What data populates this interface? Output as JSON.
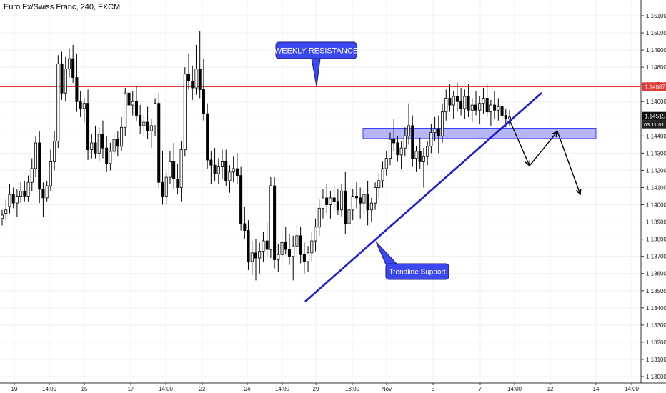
{
  "chart_title": "Euro Fx/Swiss Franc, 240, FXCM",
  "price_badge": "1.14515",
  "countdown_badge": "03:11:01",
  "chart_data": {
    "type": "candlestick",
    "title": "Euro Fx/Swiss Franc, 240, FXCM",
    "ylim": [
      1.1295,
      1.1515
    ],
    "y_ticks": [
      "1.15100",
      "1.15000",
      "1.14900",
      "1.14800",
      "1.14700",
      "1.14600",
      "1.14500",
      "1.14400",
      "1.14300",
      "1.14200",
      "1.14100",
      "1.14000",
      "1.13900",
      "1.13800",
      "1.13700",
      "1.13600",
      "1.13500",
      "1.13400",
      "1.13300",
      "1.13200",
      "1.13100",
      "1.13000"
    ],
    "x_ticks": [
      "10",
      "14:00",
      "15",
      "17",
      "14:00",
      "22",
      "24",
      "14:00",
      "29",
      "13:00",
      "Nov",
      "5",
      "7",
      "14:00",
      "12",
      "14",
      "14:00"
    ],
    "last_price": 1.14515,
    "countdown": "03:11:01",
    "resistance": {
      "value": 1.14687,
      "label": "1.14687",
      "color": "#e53935"
    },
    "zone": {
      "low": 1.14385,
      "high": 1.14445,
      "fill": "#9c9ff5",
      "stroke": "#3d3dff"
    },
    "trendline_color": "#1c1cd6",
    "annotation_color": "#3b48f0",
    "annotations": [
      {
        "text": "WEEKLY RESISTANCE"
      },
      {
        "text": "Trendline Support"
      }
    ],
    "candles": [
      [
        1.1392,
        1.1397,
        1.1388,
        1.1394
      ],
      [
        1.1395,
        1.1403,
        1.1391,
        1.1397
      ],
      [
        1.1399,
        1.1412,
        1.1395,
        1.1406
      ],
      [
        1.1406,
        1.141,
        1.1398,
        1.1401
      ],
      [
        1.1401,
        1.1409,
        1.1393,
        1.1405
      ],
      [
        1.1405,
        1.1413,
        1.1401,
        1.1408
      ],
      [
        1.1408,
        1.1414,
        1.1402,
        1.1405
      ],
      [
        1.1405,
        1.1417,
        1.1402,
        1.1413
      ],
      [
        1.1413,
        1.1427,
        1.1408,
        1.1421
      ],
      [
        1.1421,
        1.144,
        1.1416,
        1.1436
      ],
      [
        1.1436,
        1.1443,
        1.1401,
        1.1409
      ],
      [
        1.1409,
        1.1413,
        1.1393,
        1.1404
      ],
      [
        1.1404,
        1.1414,
        1.1402,
        1.1411
      ],
      [
        1.1411,
        1.1432,
        1.1408,
        1.1425
      ],
      [
        1.1425,
        1.1443,
        1.142,
        1.1437
      ],
      [
        1.1437,
        1.1487,
        1.1433,
        1.1482
      ],
      [
        1.1482,
        1.1489,
        1.1461,
        1.1465
      ],
      [
        1.1465,
        1.1486,
        1.146,
        1.1479
      ],
      [
        1.1479,
        1.1491,
        1.1474,
        1.1485
      ],
      [
        1.1485,
        1.1493,
        1.1471,
        1.1474
      ],
      [
        1.1474,
        1.1488,
        1.1454,
        1.146
      ],
      [
        1.146,
        1.1466,
        1.1451,
        1.1456
      ],
      [
        1.1456,
        1.1462,
        1.1448,
        1.1459
      ],
      [
        1.1459,
        1.1467,
        1.1426,
        1.1432
      ],
      [
        1.1432,
        1.1441,
        1.1427,
        1.1436
      ],
      [
        1.1436,
        1.1446,
        1.1427,
        1.143
      ],
      [
        1.143,
        1.1445,
        1.1425,
        1.1441
      ],
      [
        1.1441,
        1.1449,
        1.1427,
        1.1433
      ],
      [
        1.1433,
        1.144,
        1.1419,
        1.1424
      ],
      [
        1.1424,
        1.1436,
        1.142,
        1.1431
      ],
      [
        1.1431,
        1.1442,
        1.1429,
        1.1438
      ],
      [
        1.1438,
        1.1443,
        1.1428,
        1.1434
      ],
      [
        1.1434,
        1.1451,
        1.1431,
        1.1445
      ],
      [
        1.1445,
        1.1468,
        1.144,
        1.1465
      ],
      [
        1.1465,
        1.147,
        1.1453,
        1.1458
      ],
      [
        1.1458,
        1.1466,
        1.1452,
        1.146
      ],
      [
        1.146,
        1.1469,
        1.1449,
        1.1452
      ],
      [
        1.1452,
        1.1458,
        1.1441,
        1.1446
      ],
      [
        1.1446,
        1.1453,
        1.144,
        1.1448
      ],
      [
        1.1448,
        1.1457,
        1.1438,
        1.1443
      ],
      [
        1.1443,
        1.145,
        1.1433,
        1.1446
      ],
      [
        1.1446,
        1.1462,
        1.144,
        1.1459
      ],
      [
        1.1459,
        1.1465,
        1.141,
        1.1413
      ],
      [
        1.1413,
        1.1431,
        1.14,
        1.1405
      ],
      [
        1.1405,
        1.1419,
        1.14,
        1.1416
      ],
      [
        1.1416,
        1.1431,
        1.1412,
        1.1425
      ],
      [
        1.1425,
        1.1436,
        1.1409,
        1.1415
      ],
      [
        1.1415,
        1.1424,
        1.1406,
        1.141
      ],
      [
        1.141,
        1.1437,
        1.1402,
        1.1432
      ],
      [
        1.1432,
        1.148,
        1.1428,
        1.1476
      ],
      [
        1.1476,
        1.1488,
        1.1467,
        1.1472
      ],
      [
        1.1472,
        1.1481,
        1.1461,
        1.1468
      ],
      [
        1.1468,
        1.1493,
        1.1464,
        1.1479
      ],
      [
        1.1479,
        1.1501,
        1.1462,
        1.1467
      ],
      [
        1.1467,
        1.1485,
        1.1449,
        1.1453
      ],
      [
        1.1453,
        1.1459,
        1.1421,
        1.1426
      ],
      [
        1.1426,
        1.1431,
        1.1412,
        1.1423
      ],
      [
        1.1423,
        1.1433,
        1.1414,
        1.1418
      ],
      [
        1.1418,
        1.1427,
        1.1412,
        1.1422
      ],
      [
        1.1422,
        1.1432,
        1.1415,
        1.1425
      ],
      [
        1.1425,
        1.1432,
        1.1411,
        1.1414
      ],
      [
        1.1414,
        1.1423,
        1.1407,
        1.1419
      ],
      [
        1.1419,
        1.1428,
        1.1413,
        1.1421
      ],
      [
        1.1421,
        1.143,
        1.1412,
        1.1417
      ],
      [
        1.1417,
        1.1422,
        1.1385,
        1.1389
      ],
      [
        1.1389,
        1.1399,
        1.138,
        1.1385
      ],
      [
        1.1385,
        1.1391,
        1.1362,
        1.1367
      ],
      [
        1.1367,
        1.1379,
        1.1359,
        1.1372
      ],
      [
        1.1372,
        1.138,
        1.1356,
        1.1369
      ],
      [
        1.1369,
        1.1378,
        1.136,
        1.1373
      ],
      [
        1.1373,
        1.1384,
        1.1367,
        1.1379
      ],
      [
        1.1379,
        1.139,
        1.137,
        1.1374
      ],
      [
        1.1374,
        1.1416,
        1.1369,
        1.1411
      ],
      [
        1.1411,
        1.1416,
        1.1363,
        1.1368
      ],
      [
        1.1368,
        1.1377,
        1.1361,
        1.1371
      ],
      [
        1.1371,
        1.1385,
        1.1366,
        1.1378
      ],
      [
        1.1378,
        1.1387,
        1.1371,
        1.1374
      ],
      [
        1.1374,
        1.1383,
        1.1365,
        1.137
      ],
      [
        1.137,
        1.1382,
        1.1356,
        1.1376
      ],
      [
        1.1376,
        1.1388,
        1.137,
        1.1382
      ],
      [
        1.1382,
        1.1387,
        1.1366,
        1.1371
      ],
      [
        1.1371,
        1.1378,
        1.136,
        1.1367
      ],
      [
        1.1367,
        1.1376,
        1.1361,
        1.1372
      ],
      [
        1.1372,
        1.1384,
        1.1367,
        1.1379
      ],
      [
        1.1379,
        1.1392,
        1.1373,
        1.1387
      ],
      [
        1.1387,
        1.1403,
        1.1382,
        1.1398
      ],
      [
        1.1398,
        1.1409,
        1.1392,
        1.1404
      ],
      [
        1.1404,
        1.1412,
        1.1395,
        1.14
      ],
      [
        1.14,
        1.1408,
        1.1392,
        1.1404
      ],
      [
        1.1404,
        1.1411,
        1.1396,
        1.1402
      ],
      [
        1.1402,
        1.1409,
        1.1394,
        1.1397
      ],
      [
        1.1397,
        1.1412,
        1.1393,
        1.1408
      ],
      [
        1.1408,
        1.1419,
        1.1383,
        1.1389
      ],
      [
        1.1389,
        1.1401,
        1.1385,
        1.1397
      ],
      [
        1.1397,
        1.1409,
        1.1391,
        1.1405
      ],
      [
        1.1405,
        1.1413,
        1.1398,
        1.1404
      ],
      [
        1.1404,
        1.141,
        1.1392,
        1.1401
      ],
      [
        1.1401,
        1.1409,
        1.1394,
        1.1406
      ],
      [
        1.1406,
        1.1414,
        1.1388,
        1.1397
      ],
      [
        1.1397,
        1.1404,
        1.139,
        1.1401
      ],
      [
        1.1401,
        1.1413,
        1.1397,
        1.141
      ],
      [
        1.141,
        1.1418,
        1.1404,
        1.1414
      ],
      [
        1.1414,
        1.1425,
        1.141,
        1.1421
      ],
      [
        1.1421,
        1.1431,
        1.1417,
        1.1427
      ],
      [
        1.1427,
        1.1442,
        1.1423,
        1.1438
      ],
      [
        1.1438,
        1.145,
        1.1431,
        1.1436
      ],
      [
        1.1436,
        1.144,
        1.1425,
        1.1429
      ],
      [
        1.1429,
        1.1437,
        1.1421,
        1.1433
      ],
      [
        1.1433,
        1.1445,
        1.1428,
        1.144
      ],
      [
        1.144,
        1.1459,
        1.1435,
        1.1446
      ],
      [
        1.1446,
        1.1452,
        1.1422,
        1.1427
      ],
      [
        1.1427,
        1.1434,
        1.1419,
        1.1431
      ],
      [
        1.1431,
        1.1439,
        1.1421,
        1.1425
      ],
      [
        1.1425,
        1.1433,
        1.141,
        1.1428
      ],
      [
        1.1428,
        1.1437,
        1.1423,
        1.1434
      ],
      [
        1.1434,
        1.1447,
        1.143,
        1.1442
      ],
      [
        1.1442,
        1.1451,
        1.1437,
        1.1444
      ],
      [
        1.1444,
        1.1452,
        1.143,
        1.144
      ],
      [
        1.144,
        1.1459,
        1.1436,
        1.1454
      ],
      [
        1.1454,
        1.1467,
        1.1449,
        1.1462
      ],
      [
        1.1462,
        1.147,
        1.1454,
        1.1458
      ],
      [
        1.1458,
        1.1466,
        1.145,
        1.1463
      ],
      [
        1.1463,
        1.1471,
        1.1454,
        1.146
      ],
      [
        1.146,
        1.1468,
        1.1452,
        1.1456
      ],
      [
        1.1456,
        1.1467,
        1.145,
        1.1463
      ],
      [
        1.1463,
        1.147,
        1.1451,
        1.1455
      ],
      [
        1.1455,
        1.1462,
        1.1448,
        1.1458
      ],
      [
        1.1458,
        1.1466,
        1.1452,
        1.1455
      ],
      [
        1.1455,
        1.1463,
        1.1447,
        1.1459
      ],
      [
        1.1459,
        1.1468,
        1.1453,
        1.1462
      ],
      [
        1.1462,
        1.147,
        1.1451,
        1.1454
      ],
      [
        1.1454,
        1.1461,
        1.1446,
        1.1458
      ],
      [
        1.1458,
        1.1466,
        1.145,
        1.1455
      ],
      [
        1.1455,
        1.1462,
        1.1449,
        1.1457
      ],
      [
        1.1457,
        1.1462,
        1.1449,
        1.1452
      ],
      [
        1.1452,
        1.1456,
        1.1445,
        1.145
      ],
      [
        1.145,
        1.1455,
        1.1446,
        1.1451
      ]
    ]
  }
}
